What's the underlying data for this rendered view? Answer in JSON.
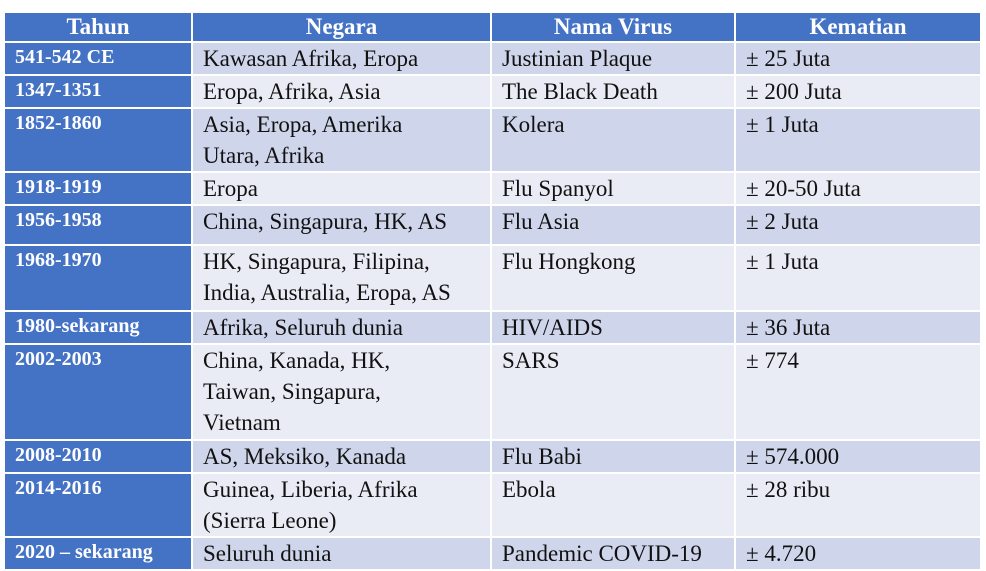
{
  "table": {
    "headers": [
      "Tahun",
      "Negara",
      "Nama Virus",
      "Kematian"
    ],
    "rows": [
      {
        "year": "541-542 CE",
        "country": [
          "Kawasan Afrika, Eropa"
        ],
        "virus": "Justinian Plaque",
        "deaths": "± 25 Juta"
      },
      {
        "year": "1347-1351",
        "country": [
          "Eropa, Afrika, Asia"
        ],
        "virus": "The Black Death",
        "deaths": "± 200 Juta"
      },
      {
        "year": "1852-1860",
        "country": [
          "Asia, Eropa, Amerika",
          "Utara, Afrika"
        ],
        "virus": "Kolera",
        "deaths": "± 1 Juta"
      },
      {
        "year": "1918-1919",
        "country": [
          "Eropa"
        ],
        "virus": "Flu Spanyol",
        "deaths": "± 20-50 Juta"
      },
      {
        "year": "1956-1958",
        "country": [
          "China, Singapura, HK, AS"
        ],
        "virus": "Flu Asia",
        "deaths": "± 2 Juta"
      },
      {
        "year": "1968-1970",
        "country": [
          "HK, Singapura, Filipina,",
          "India, Australia, Eropa, AS"
        ],
        "virus": "Flu Hongkong",
        "deaths": "± 1 Juta"
      },
      {
        "year": "1980-sekarang",
        "country": [
          "Afrika, Seluruh dunia"
        ],
        "virus": "HIV/AIDS",
        "deaths": "± 36 Juta"
      },
      {
        "year": "2002-2003",
        "country": [
          "China, Kanada, HK,",
          "Taiwan, Singapura,",
          "Vietnam"
        ],
        "virus": "SARS",
        "deaths": "± 774"
      },
      {
        "year": "2008-2010",
        "country": [
          "AS, Meksiko, Kanada"
        ],
        "virus": "Flu Babi",
        "deaths": "± 574.000"
      },
      {
        "year": "2014-2016",
        "country": [
          "Guinea, Liberia, Afrika",
          "(Sierra Leone)"
        ],
        "virus": "Ebola",
        "deaths": "± 28 ribu"
      },
      {
        "year": "2020 – sekarang",
        "country": [
          "Seluruh dunia"
        ],
        "virus": "Pandemic COVID-19",
        "deaths": "± 4.720"
      }
    ]
  }
}
